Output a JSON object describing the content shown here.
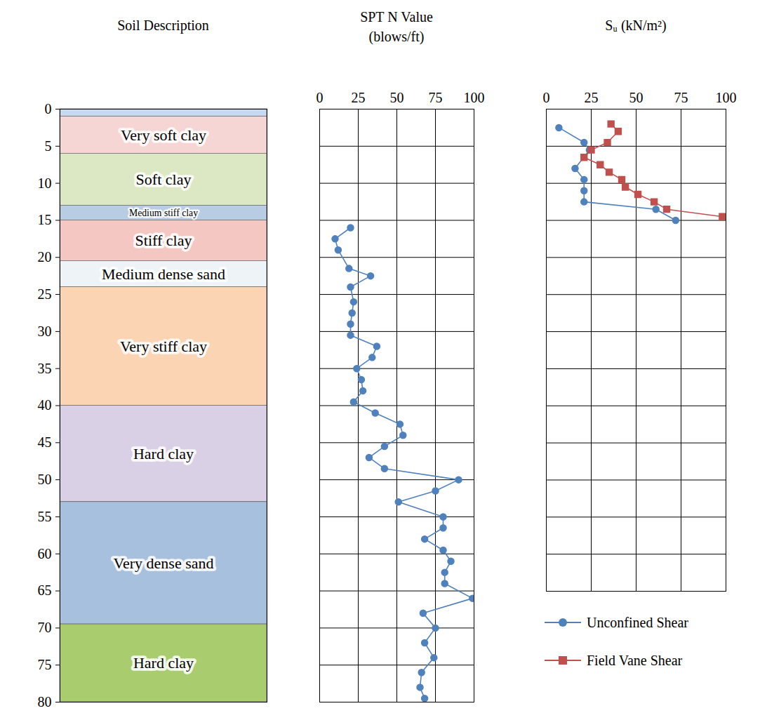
{
  "chart_data": [
    {
      "type": "strata",
      "title": "Soil Description",
      "ylim": [
        0,
        80
      ],
      "yticks": [
        0,
        5,
        10,
        15,
        20,
        25,
        30,
        35,
        40,
        45,
        50,
        55,
        60,
        65,
        70,
        75,
        80
      ],
      "tick_labels": "y",
      "layers": [
        {
          "name": null,
          "top": 0,
          "bottom": 1,
          "color": "#c6d9f1"
        },
        {
          "name": "Very soft clay",
          "top": 1,
          "bottom": 6,
          "color": "#f6d5d5"
        },
        {
          "name": "Soft clay",
          "top": 6,
          "bottom": 13,
          "color": "#dce8c4"
        },
        {
          "name": "Medium stiff clay",
          "top": 13,
          "bottom": 15,
          "color": "#b8cce4"
        },
        {
          "name": "Stiff clay",
          "top": 15,
          "bottom": 20.5,
          "color": "#f4c7c3"
        },
        {
          "name": "Medium dense sand",
          "top": 20.5,
          "bottom": 24,
          "color": "#eef3f8"
        },
        {
          "name": "Very stiff clay",
          "top": 24,
          "bottom": 40,
          "color": "#fbd4b4"
        },
        {
          "name": "Hard clay",
          "top": 40,
          "bottom": 53,
          "color": "#d9d0e6"
        },
        {
          "name": "Very dense sand",
          "top": 53,
          "bottom": 69.5,
          "color": "#a7c0de"
        },
        {
          "name": "Hard clay",
          "top": 69.5,
          "bottom": 80,
          "color": "#a9cc6e"
        }
      ]
    },
    {
      "type": "line",
      "title": "SPT N Value",
      "subtitle": "(blows/ft)",
      "xlim": [
        0,
        100
      ],
      "xticks": [
        0,
        25,
        50,
        75,
        100
      ],
      "ylim": [
        0,
        80
      ],
      "yticks": [
        0,
        5,
        10,
        15,
        20,
        25,
        30,
        35,
        40,
        45,
        50,
        55,
        60,
        65,
        70,
        75,
        80
      ],
      "grid": true,
      "tick_labels": "x",
      "series": [
        {
          "color": "#4f81bd",
          "marker": "circle",
          "x": [
            20,
            10,
            12,
            19,
            33,
            20,
            22,
            21,
            20,
            20,
            37,
            34,
            24,
            27,
            28,
            22,
            36,
            52,
            54,
            42,
            32,
            42,
            90,
            75,
            51,
            80,
            80,
            68,
            80,
            85,
            81,
            81,
            99,
            67,
            75,
            68,
            74,
            66,
            65,
            68
          ],
          "y": [
            16,
            17.5,
            19,
            21.5,
            22.5,
            24,
            26,
            27.5,
            29,
            30.5,
            32,
            33.5,
            35,
            36.5,
            38,
            39.5,
            41,
            42.5,
            44,
            45.5,
            47,
            48.5,
            50,
            51.5,
            53,
            55,
            56.5,
            58,
            59.5,
            61,
            62.5,
            64,
            66,
            68,
            70,
            72,
            74,
            76,
            78,
            79.5
          ]
        }
      ]
    },
    {
      "type": "line",
      "title": "Sᵤ (kN/m²)",
      "xlim": [
        0,
        100
      ],
      "xticks": [
        0,
        25,
        50,
        75,
        100
      ],
      "ylim": [
        0,
        65
      ],
      "yticks": [
        0,
        5,
        10,
        15,
        20,
        25,
        30,
        35,
        40,
        45,
        50,
        55,
        60,
        65
      ],
      "grid": true,
      "tick_labels": "x",
      "legend": "bottom",
      "series": [
        {
          "name": "Unconfined Shear",
          "color": "#4f81bd",
          "marker": "circle",
          "x": [
            7,
            21,
            24,
            16,
            21,
            21,
            21,
            61,
            72
          ],
          "y": [
            2.5,
            4.5,
            5.5,
            8,
            9.5,
            11,
            12.5,
            13.5,
            15
          ]
        },
        {
          "name": "Field Vane Shear",
          "color": "#c0504d",
          "marker": "square",
          "x": [
            36,
            40,
            34,
            25,
            21,
            30,
            35,
            42,
            44,
            51,
            60,
            67,
            98
          ],
          "y": [
            2,
            3,
            4.5,
            5.5,
            6.5,
            7.5,
            8.5,
            9.5,
            10.5,
            11.5,
            12.5,
            13.5,
            14.5
          ]
        }
      ]
    }
  ]
}
